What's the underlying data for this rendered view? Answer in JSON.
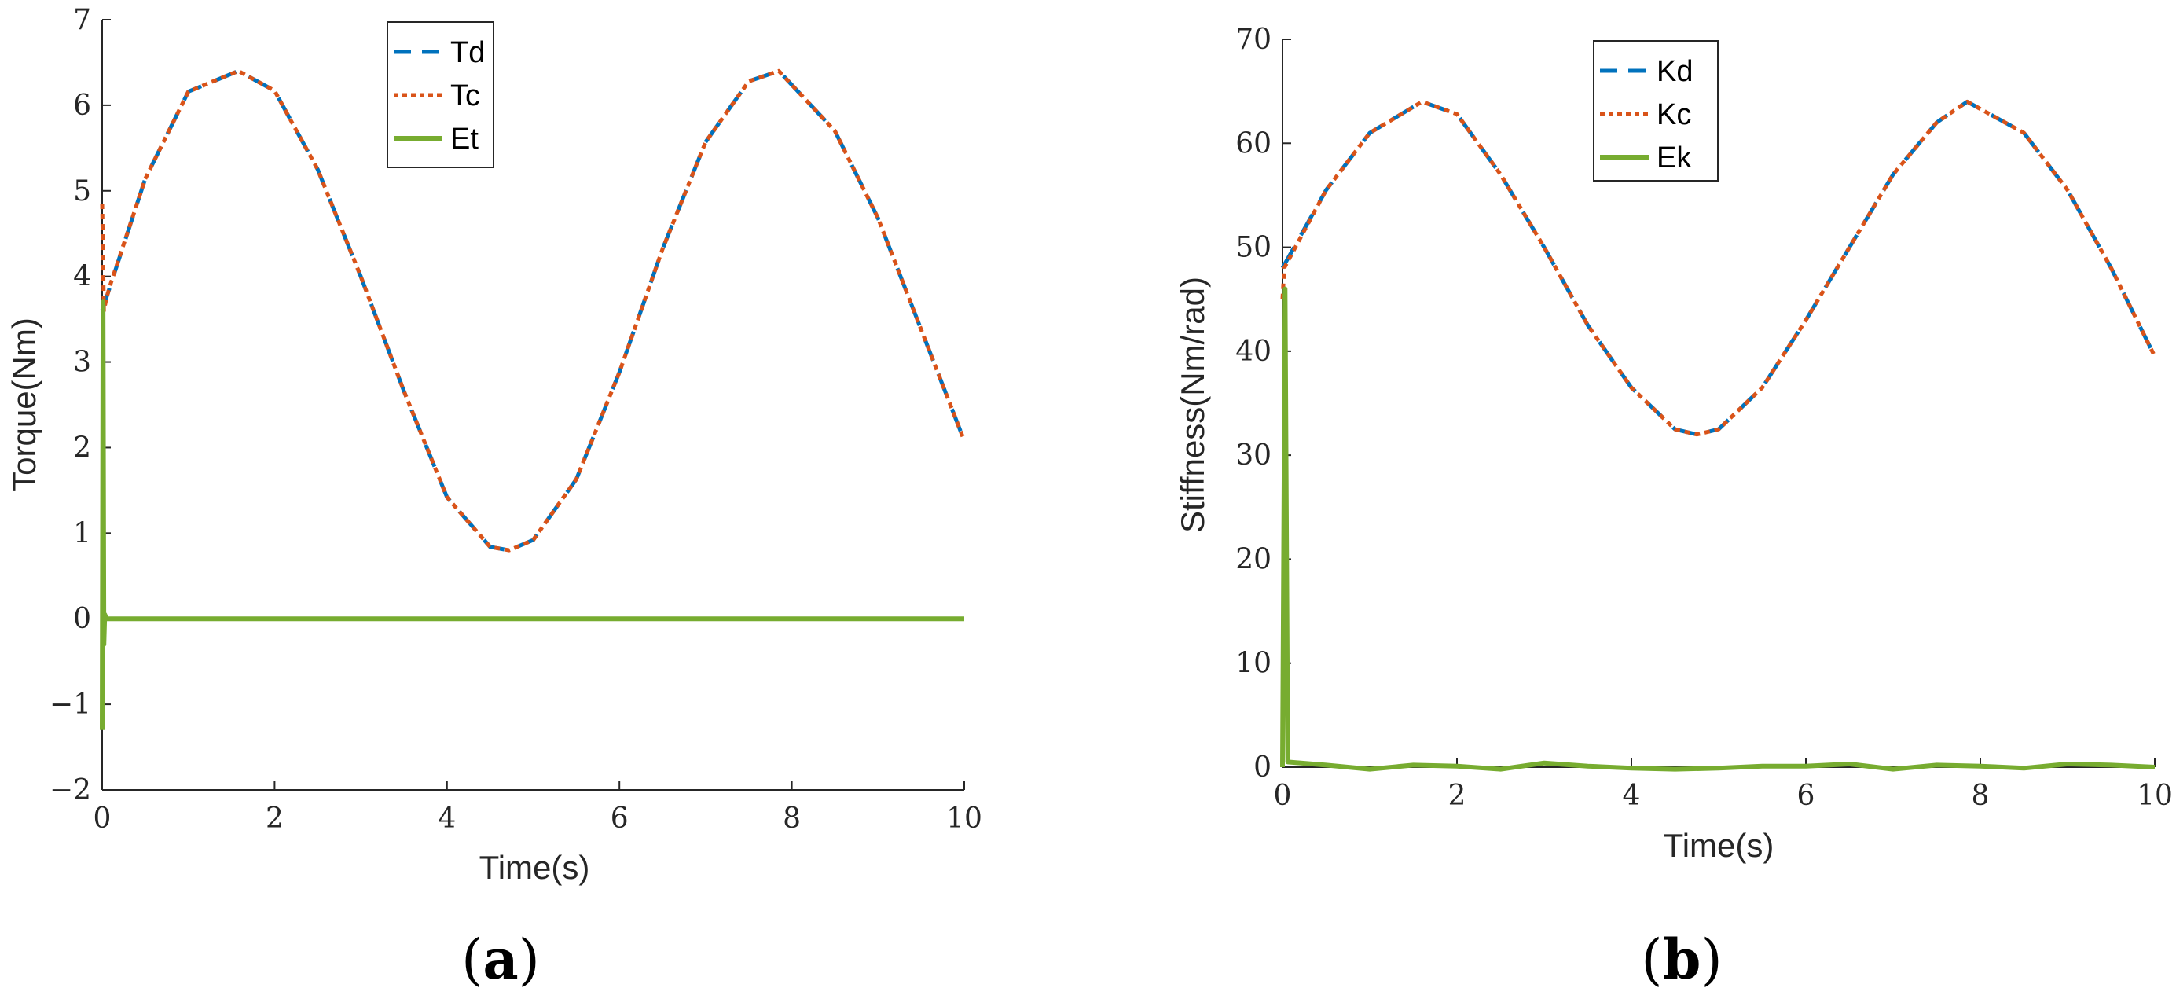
{
  "colors": {
    "desired": "#0072BD",
    "computed": "#D95319",
    "error": "#77AC30",
    "axis": "#262626"
  },
  "chart_data": [
    {
      "type": "line",
      "panel_label": "a",
      "xlabel": "Time(s)",
      "ylabel": "Torque(Nm)",
      "xlim": [
        0,
        10
      ],
      "ylim": [
        -2,
        7
      ],
      "xticks": [
        0,
        2,
        4,
        6,
        8,
        10
      ],
      "yticks": [
        -2,
        -1,
        0,
        1,
        2,
        3,
        4,
        5,
        6,
        7
      ],
      "grid": false,
      "legend_position": "top-center",
      "series": [
        {
          "name": "Td",
          "style": "dashed",
          "color": "#0072BD",
          "x": [
            0,
            0.5,
            1,
            1.58,
            2,
            2.5,
            3,
            3.5,
            4,
            4.5,
            4.72,
            5,
            5.5,
            6,
            6.5,
            7,
            7.5,
            7.85,
            8.5,
            9,
            9.5,
            10
          ],
          "y": [
            3.6,
            5.14,
            6.16,
            6.4,
            6.17,
            5.25,
            4.0,
            2.66,
            1.42,
            0.84,
            0.8,
            0.92,
            1.63,
            2.88,
            4.32,
            5.57,
            6.28,
            6.4,
            5.7,
            4.68,
            3.38,
            2.08
          ]
        },
        {
          "name": "Tc",
          "style": "dotted",
          "color": "#D95319",
          "x": [
            0,
            0.02,
            0.05,
            0.1,
            0.5,
            1,
            1.58,
            2,
            2.5,
            3,
            3.5,
            4,
            4.5,
            4.72,
            5,
            5.5,
            6,
            6.5,
            7,
            7.5,
            7.85,
            8.5,
            9,
            9.5,
            10
          ],
          "y": [
            4.85,
            3.6,
            3.75,
            3.92,
            5.14,
            6.16,
            6.4,
            6.17,
            5.25,
            4.0,
            2.66,
            1.42,
            0.84,
            0.8,
            0.92,
            1.63,
            2.88,
            4.32,
            5.57,
            6.28,
            6.4,
            5.7,
            4.68,
            3.38,
            2.08
          ]
        },
        {
          "name": "Et",
          "style": "solid",
          "color": "#77AC30",
          "x": [
            0,
            0.01,
            0.02,
            0.03,
            0.05,
            1,
            10
          ],
          "y": [
            -1.3,
            3.7,
            -0.3,
            0.05,
            0,
            0,
            0
          ]
        }
      ]
    },
    {
      "type": "line",
      "panel_label": "b",
      "xlabel": "Time(s)",
      "ylabel": "Stiffness(Nm/rad)",
      "xlim": [
        0,
        10
      ],
      "ylim": [
        0,
        70
      ],
      "xticks": [
        0,
        2,
        4,
        6,
        8,
        10
      ],
      "yticks": [
        0,
        10,
        20,
        30,
        40,
        50,
        60,
        70
      ],
      "grid": false,
      "legend_position": "top-center",
      "series": [
        {
          "name": "Kd",
          "style": "dashed",
          "color": "#0072BD",
          "x": [
            0,
            0.5,
            1,
            1.6,
            2,
            2.5,
            3,
            3.5,
            4,
            4.5,
            4.75,
            5,
            5.5,
            6,
            6.5,
            7,
            7.5,
            7.85,
            8.5,
            9,
            9.5,
            10
          ],
          "y": [
            48,
            55.5,
            61,
            64,
            62.8,
            57,
            50,
            42.5,
            36.5,
            32.5,
            32,
            32.5,
            36.5,
            43,
            50,
            57,
            62,
            64,
            61,
            55.5,
            48,
            39.5
          ]
        },
        {
          "name": "Kc",
          "style": "dotted",
          "color": "#D95319",
          "x": [
            0,
            0.02,
            0.5,
            1,
            1.6,
            2,
            2.5,
            3,
            3.5,
            4,
            4.5,
            4.75,
            5,
            5.5,
            6,
            6.5,
            7,
            7.5,
            7.85,
            8.5,
            9,
            9.5,
            10
          ],
          "y": [
            45,
            48,
            55.5,
            61,
            64,
            62.8,
            57,
            50,
            42.5,
            36.5,
            32.5,
            32,
            32.5,
            36.5,
            43,
            50,
            57,
            62,
            64,
            61,
            55.5,
            48,
            39.5
          ]
        },
        {
          "name": "Ek",
          "style": "solid",
          "color": "#77AC30",
          "x": [
            0,
            0.03,
            0.06,
            0.5,
            1,
            1.5,
            2,
            2.5,
            3,
            3.5,
            4,
            4.5,
            5,
            5.5,
            6,
            6.5,
            7,
            7.5,
            8,
            8.5,
            9,
            9.5,
            10
          ],
          "y": [
            0,
            46,
            0.5,
            0.2,
            -0.2,
            0.2,
            0.1,
            -0.2,
            0.4,
            0.1,
            -0.1,
            -0.2,
            -0.1,
            0.1,
            0.1,
            0.3,
            -0.2,
            0.2,
            0.1,
            -0.1,
            0.3,
            0.2,
            0
          ]
        }
      ]
    }
  ]
}
